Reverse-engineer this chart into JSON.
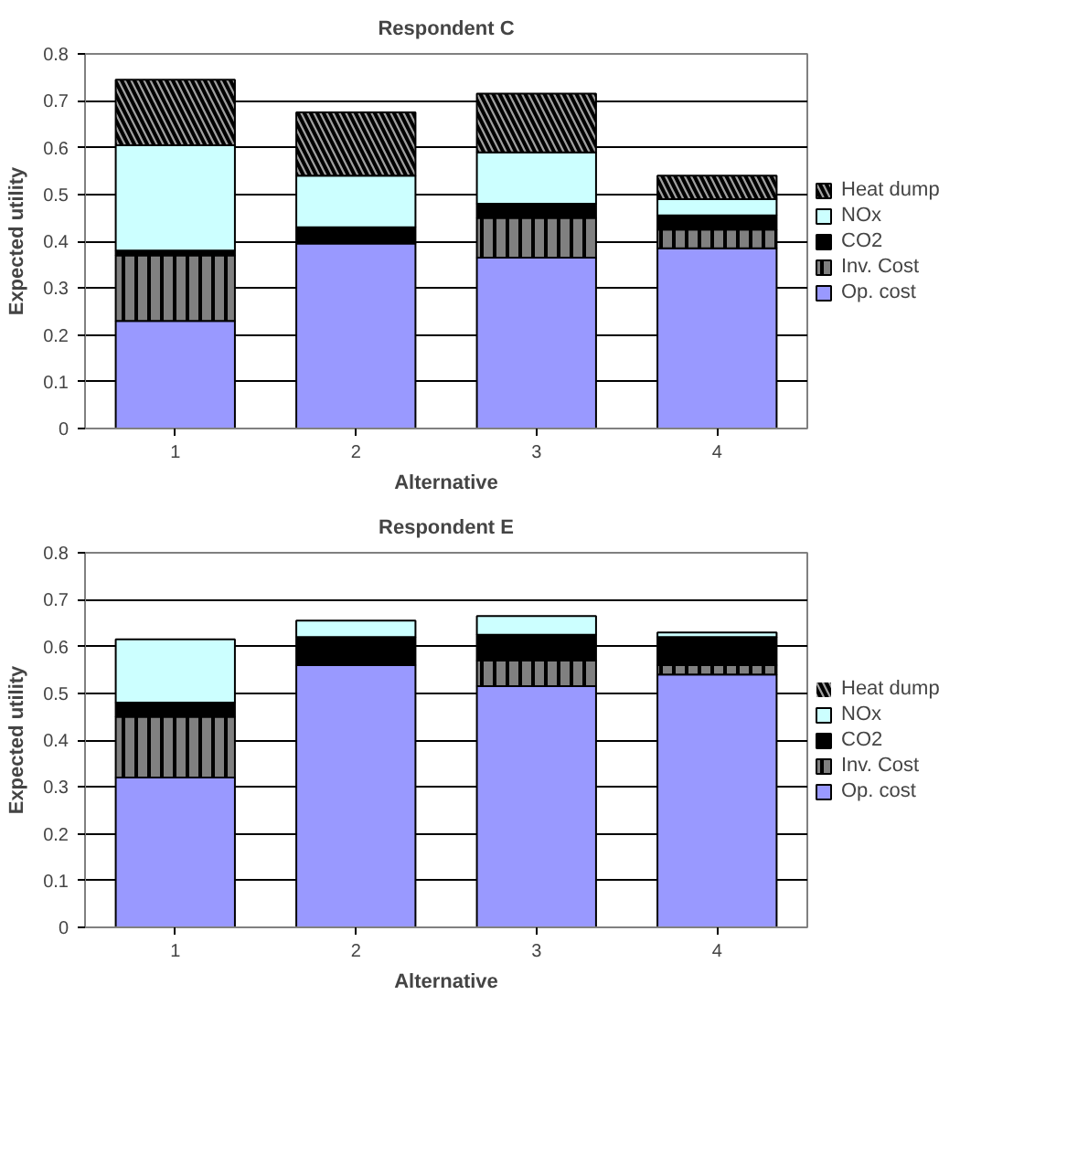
{
  "chart_data": [
    {
      "type": "bar",
      "title": "Respondent C",
      "xlabel": "Alternative",
      "ylabel": "Expected utility",
      "categories": [
        "1",
        "2",
        "3",
        "4"
      ],
      "stacked": true,
      "ylim": [
        0,
        0.8
      ],
      "yticks": [
        0,
        0.1,
        0.2,
        0.3,
        0.4,
        0.5,
        0.6,
        0.7,
        0.8
      ],
      "grid": "y",
      "legend": "right",
      "series": [
        {
          "name": "Op. cost",
          "color": "#9999ff",
          "values": [
            0.23,
            0.395,
            0.365,
            0.385
          ]
        },
        {
          "name": "Inv. Cost",
          "color": "#808080",
          "values": [
            0.14,
            0,
            0.085,
            0.04
          ]
        },
        {
          "name": "CO2",
          "color": "#000000",
          "values": [
            0.01,
            0.035,
            0.03,
            0.03
          ]
        },
        {
          "name": "NOx",
          "color": "#ccffff",
          "values": [
            0.225,
            0.11,
            0.11,
            0.035
          ]
        },
        {
          "name": "Heat dump",
          "color": "#a0a0a0",
          "values": [
            0.14,
            0.135,
            0.125,
            0.05
          ]
        }
      ]
    },
    {
      "type": "bar",
      "title": "Respondent E",
      "xlabel": "Alternative",
      "ylabel": "Expected utility",
      "categories": [
        "1",
        "2",
        "3",
        "4"
      ],
      "stacked": true,
      "ylim": [
        0,
        0.8
      ],
      "yticks": [
        0,
        0.1,
        0.2,
        0.3,
        0.4,
        0.5,
        0.6,
        0.7,
        0.8
      ],
      "grid": "y",
      "legend": "right",
      "series": [
        {
          "name": "Op. cost",
          "color": "#9999ff",
          "values": [
            0.32,
            0.56,
            0.515,
            0.54
          ]
        },
        {
          "name": "Inv. Cost",
          "color": "#808080",
          "values": [
            0.13,
            0,
            0.055,
            0.02
          ]
        },
        {
          "name": "CO2",
          "color": "#000000",
          "values": [
            0.03,
            0.06,
            0.055,
            0.06
          ]
        },
        {
          "name": "NOx",
          "color": "#ccffff",
          "values": [
            0.135,
            0.035,
            0.04,
            0.01
          ]
        },
        {
          "name": "Heat dump",
          "color": "#a0a0a0",
          "values": [
            0,
            0,
            0,
            0
          ]
        }
      ]
    }
  ]
}
